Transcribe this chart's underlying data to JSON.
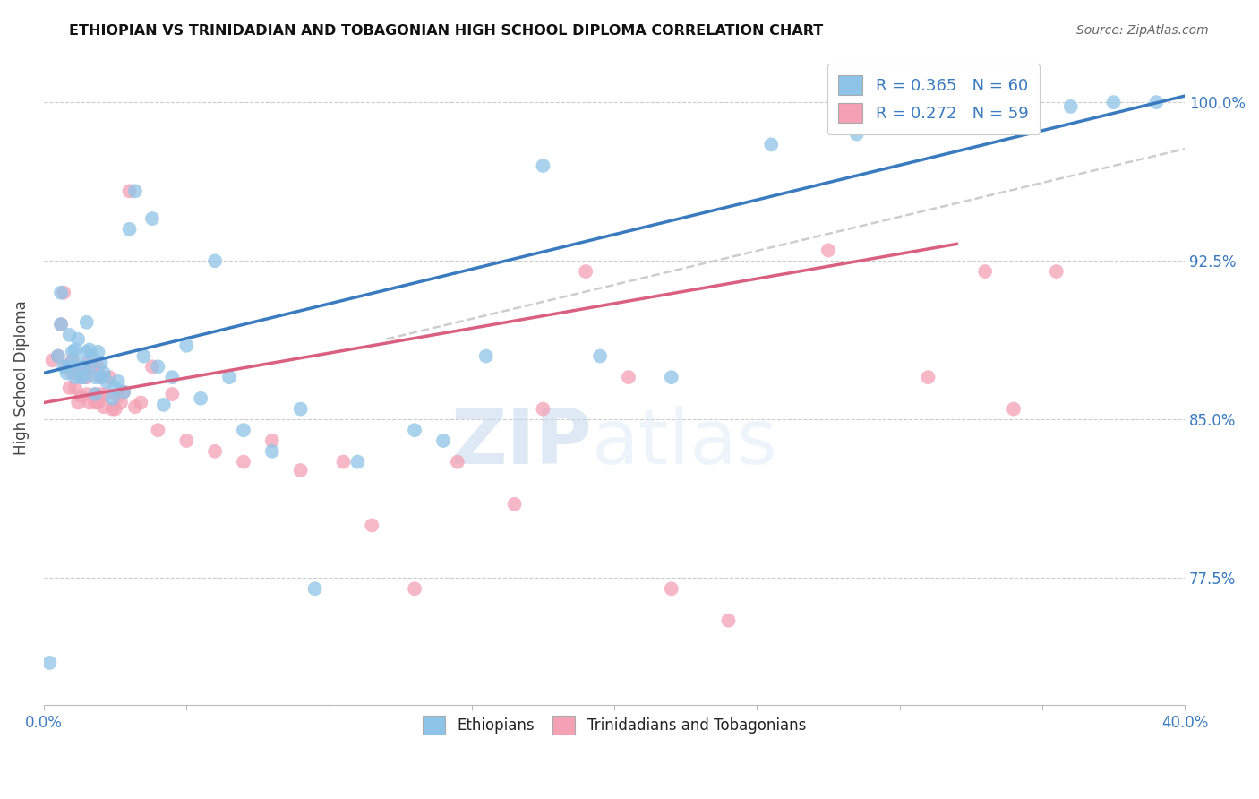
{
  "title": "ETHIOPIAN VS TRINIDADIAN AND TOBAGONIAN HIGH SCHOOL DIPLOMA CORRELATION CHART",
  "source": "Source: ZipAtlas.com",
  "ylabel": "High School Diploma",
  "ytick_labels": [
    "77.5%",
    "85.0%",
    "92.5%",
    "100.0%"
  ],
  "ytick_values": [
    0.775,
    0.85,
    0.925,
    1.0
  ],
  "xlim": [
    0.0,
    0.4
  ],
  "ylim": [
    0.715,
    1.025
  ],
  "legend_label1": "R = 0.365   N = 60",
  "legend_label2": "R = 0.272   N = 59",
  "legend_bottom1": "Ethiopians",
  "legend_bottom2": "Trinidadians and Tobagonians",
  "color_blue": "#8ec4e8",
  "color_pink": "#f4a0b5",
  "color_blue_line": "#3a7abf",
  "color_pink_line": "#d96080",
  "color_gray_line": "#c8c8c8",
  "watermark_zip": "ZIP",
  "watermark_atlas": "atlas",
  "blue_line_x": [
    0.0,
    0.4
  ],
  "blue_line_y": [
    0.872,
    1.003
  ],
  "pink_line_x": [
    0.0,
    0.32
  ],
  "pink_line_y": [
    0.858,
    0.933
  ],
  "gray_line_x": [
    0.12,
    0.4
  ],
  "gray_line_y": [
    0.888,
    0.978
  ],
  "blue_x": [
    0.002,
    0.005,
    0.006,
    0.006,
    0.007,
    0.008,
    0.009,
    0.009,
    0.01,
    0.01,
    0.011,
    0.011,
    0.012,
    0.012,
    0.013,
    0.014,
    0.014,
    0.015,
    0.015,
    0.016,
    0.016,
    0.017,
    0.018,
    0.018,
    0.019,
    0.02,
    0.02,
    0.021,
    0.022,
    0.024,
    0.025,
    0.026,
    0.028,
    0.03,
    0.032,
    0.035,
    0.038,
    0.04,
    0.042,
    0.045,
    0.05,
    0.055,
    0.06,
    0.065,
    0.07,
    0.08,
    0.09,
    0.095,
    0.11,
    0.13,
    0.14,
    0.155,
    0.175,
    0.195,
    0.22,
    0.255,
    0.285,
    0.36,
    0.375,
    0.39
  ],
  "blue_y": [
    0.735,
    0.88,
    0.895,
    0.91,
    0.875,
    0.872,
    0.876,
    0.89,
    0.875,
    0.882,
    0.87,
    0.883,
    0.877,
    0.888,
    0.87,
    0.875,
    0.87,
    0.882,
    0.896,
    0.875,
    0.883,
    0.88,
    0.862,
    0.87,
    0.882,
    0.87,
    0.877,
    0.872,
    0.868,
    0.86,
    0.865,
    0.868,
    0.863,
    0.94,
    0.958,
    0.88,
    0.945,
    0.875,
    0.857,
    0.87,
    0.885,
    0.86,
    0.925,
    0.87,
    0.845,
    0.835,
    0.855,
    0.77,
    0.83,
    0.845,
    0.84,
    0.88,
    0.97,
    0.88,
    0.87,
    0.98,
    0.985,
    0.998,
    1.0,
    1.0
  ],
  "pink_x": [
    0.003,
    0.005,
    0.006,
    0.007,
    0.008,
    0.009,
    0.01,
    0.01,
    0.011,
    0.012,
    0.012,
    0.013,
    0.014,
    0.014,
    0.015,
    0.015,
    0.016,
    0.016,
    0.017,
    0.018,
    0.018,
    0.019,
    0.019,
    0.02,
    0.02,
    0.021,
    0.022,
    0.023,
    0.024,
    0.025,
    0.026,
    0.027,
    0.028,
    0.03,
    0.032,
    0.034,
    0.038,
    0.04,
    0.045,
    0.05,
    0.06,
    0.07,
    0.08,
    0.09,
    0.105,
    0.115,
    0.13,
    0.145,
    0.165,
    0.175,
    0.19,
    0.205,
    0.22,
    0.24,
    0.275,
    0.31,
    0.33,
    0.34,
    0.355
  ],
  "pink_y": [
    0.878,
    0.88,
    0.895,
    0.91,
    0.875,
    0.865,
    0.872,
    0.878,
    0.865,
    0.872,
    0.858,
    0.861,
    0.875,
    0.87,
    0.87,
    0.862,
    0.858,
    0.877,
    0.875,
    0.858,
    0.862,
    0.875,
    0.858,
    0.862,
    0.87,
    0.856,
    0.862,
    0.87,
    0.855,
    0.855,
    0.861,
    0.858,
    0.863,
    0.958,
    0.856,
    0.858,
    0.875,
    0.845,
    0.862,
    0.84,
    0.835,
    0.83,
    0.84,
    0.826,
    0.83,
    0.8,
    0.77,
    0.83,
    0.81,
    0.855,
    0.92,
    0.87,
    0.77,
    0.755,
    0.93,
    0.87,
    0.92,
    0.855,
    0.92
  ]
}
